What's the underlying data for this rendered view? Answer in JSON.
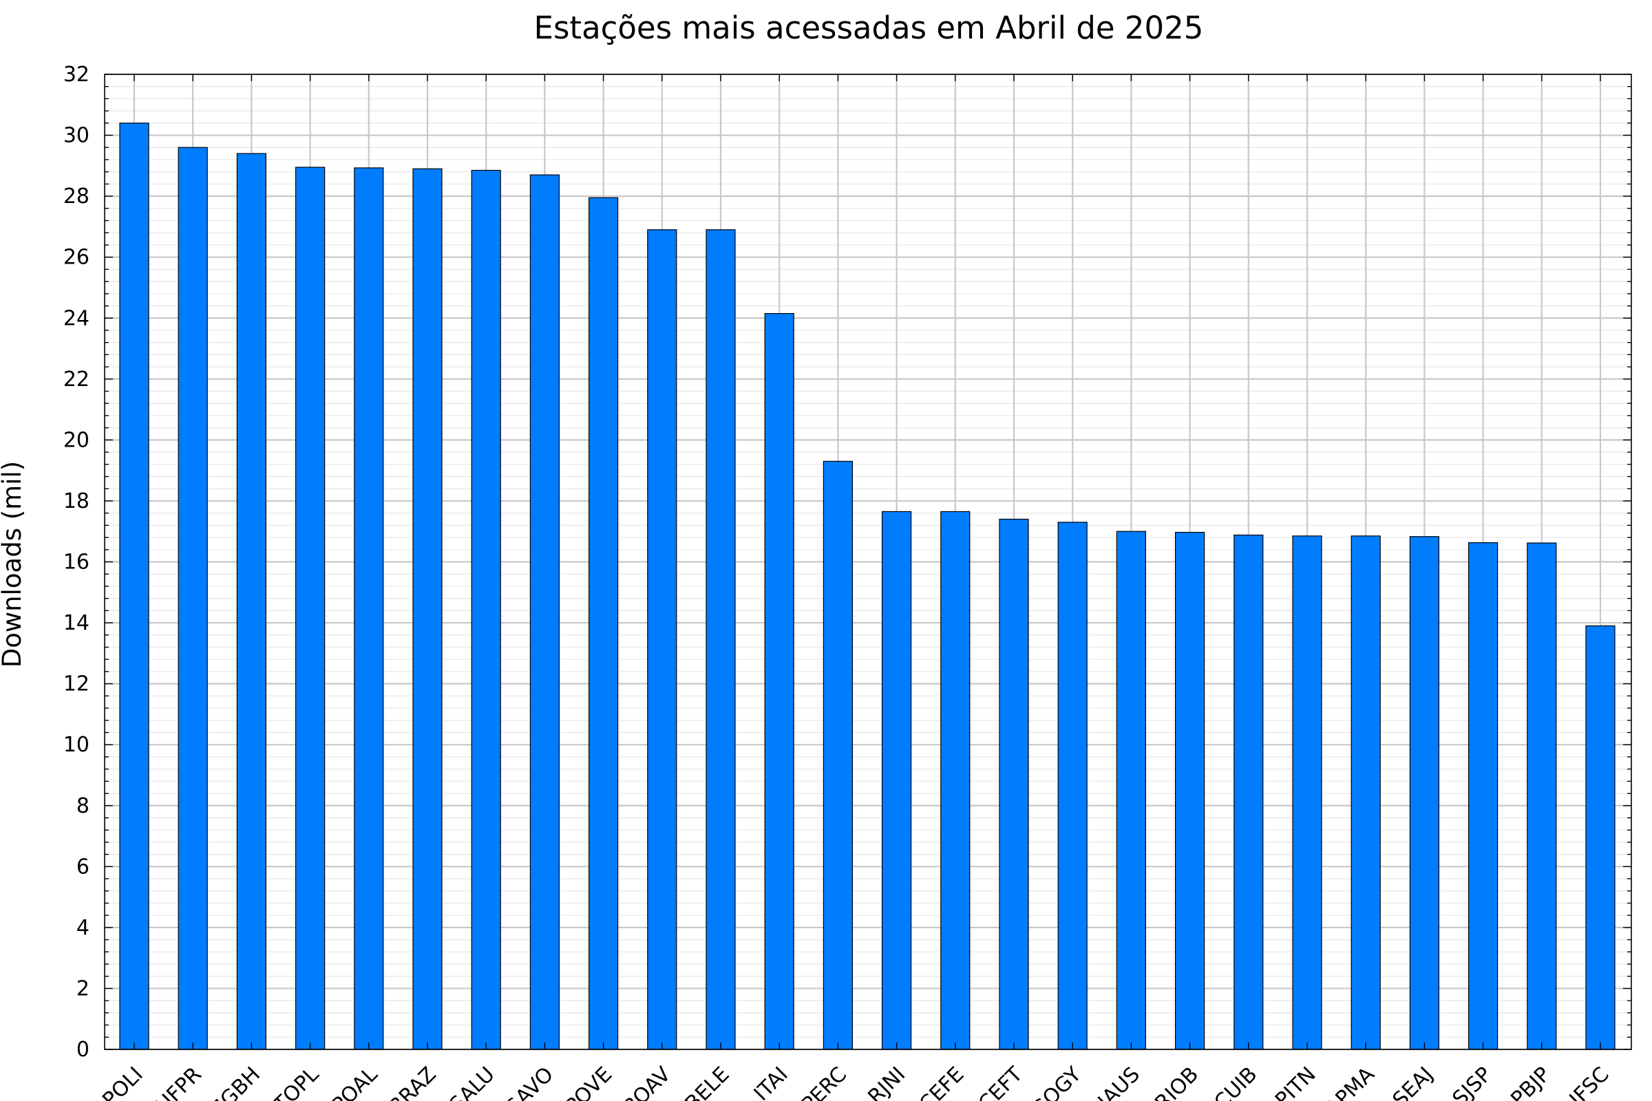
{
  "chart_data": {
    "type": "bar",
    "title": "Estações mais acessadas em Abril de 2025",
    "xlabel": "",
    "ylabel": "Downloads (mil)",
    "ylim": [
      0,
      32
    ],
    "y_ticks": [
      "0",
      "2",
      "4",
      "6",
      "8",
      "10",
      "12",
      "14",
      "16",
      "18",
      "20",
      "22",
      "24",
      "26",
      "28",
      "30",
      "32"
    ],
    "grid": true,
    "bar_color": "#007dff",
    "categories": [
      "POLI",
      "UFPR",
      "MGBH",
      "TOPL",
      "POAL",
      "BRAZ",
      "SALU",
      "SAVO",
      "POVE",
      "BOAV",
      "BELE",
      "ITAI",
      "PERC",
      "RJNI",
      "CEFE",
      "CEFT",
      "GOGY",
      "NAUS",
      "RIOB",
      "CUIB",
      "PITN",
      "APMA",
      "SEAJ",
      "SJSP",
      "PBJP",
      "IFSC"
    ],
    "values": [
      30.4,
      29.6,
      29.4,
      28.95,
      28.93,
      28.9,
      28.85,
      28.7,
      27.95,
      26.9,
      26.9,
      24.15,
      19.3,
      17.65,
      17.65,
      17.4,
      17.3,
      17.0,
      16.97,
      16.88,
      16.85,
      16.85,
      16.83,
      16.63,
      16.62,
      13.9
    ]
  }
}
